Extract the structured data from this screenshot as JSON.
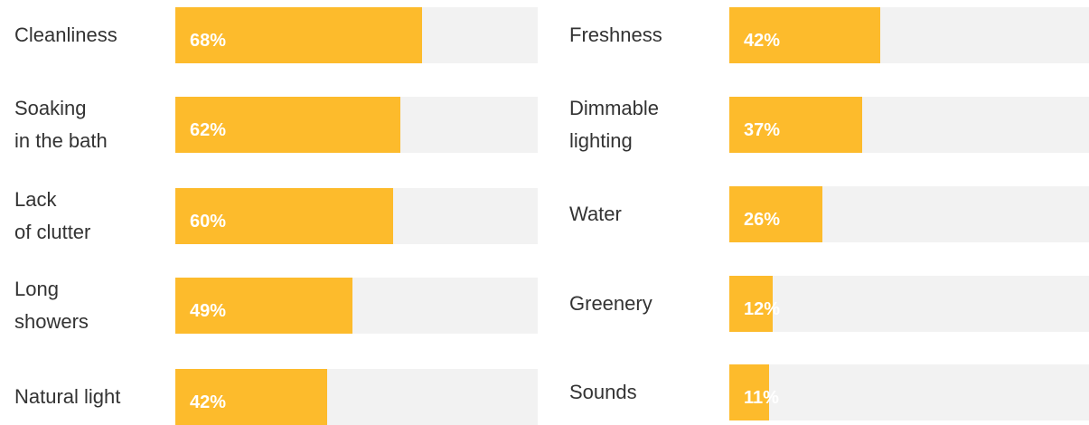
{
  "chart_data": [
    {
      "type": "bar",
      "orientation": "horizontal",
      "color": "#fdbb2c",
      "xlim": [
        0,
        100
      ],
      "categories": [
        "Cleanliness",
        "Soaking\nin the bath",
        "Lack\nof clutter",
        "Long\nshowers",
        "Natural light"
      ],
      "values": [
        68,
        62,
        60,
        49,
        42
      ],
      "value_labels": [
        "68%",
        "62%",
        "60%",
        "49%",
        "42%"
      ]
    },
    {
      "type": "bar",
      "orientation": "horizontal",
      "color": "#fdbb2c",
      "xlim": [
        0,
        100
      ],
      "categories": [
        "Freshness",
        "Dimmable\nlighting",
        "Water",
        "Greenery",
        "Sounds"
      ],
      "values": [
        42,
        37,
        26,
        12,
        11
      ],
      "value_labels": [
        "42%",
        "37%",
        "26%",
        "12%",
        "11%"
      ]
    }
  ]
}
